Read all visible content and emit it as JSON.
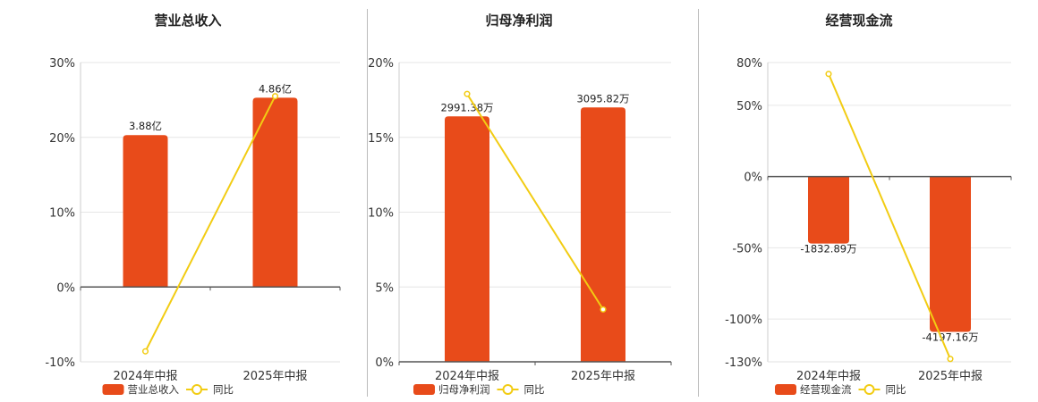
{
  "colors": {
    "bar": "#E84B1A",
    "line": "#F2CC13",
    "grid": "#e6e6e6",
    "axis": "#555555"
  },
  "chart_data": [
    {
      "type": "bar",
      "title": "营业总收入",
      "categories": [
        "2024年中报",
        "2025年中报"
      ],
      "values": [
        20.3,
        25.3
      ],
      "value_labels": [
        "3.88亿",
        "4.86亿"
      ],
      "line_values": [
        -8.6,
        25.5
      ],
      "yticks": [
        30,
        20,
        10,
        0,
        -10
      ],
      "ytick_labels": [
        "30%",
        "20%",
        "10%",
        "0%",
        "-10%"
      ],
      "ylim": [
        -10,
        30
      ],
      "legend": [
        "营业总收入",
        "同比"
      ],
      "legend_position": "bottom",
      "grid": true
    },
    {
      "type": "bar",
      "title": "归母净利润",
      "categories": [
        "2024年中报",
        "2025年中报"
      ],
      "values": [
        16.4,
        17.0
      ],
      "value_labels": [
        "2991.38万",
        "3095.82万"
      ],
      "line_values": [
        17.9,
        3.5
      ],
      "yticks": [
        20,
        15,
        10,
        5,
        0
      ],
      "ytick_labels": [
        "20%",
        "15%",
        "10%",
        "5%",
        "0%"
      ],
      "ylim": [
        0,
        20
      ],
      "legend": [
        "归母净利润",
        "同比"
      ],
      "legend_position": "bottom",
      "grid": true
    },
    {
      "type": "bar",
      "title": "经营现金流",
      "categories": [
        "2024年中报",
        "2025年中报"
      ],
      "values": [
        -47,
        -109
      ],
      "value_labels": [
        "-1832.89万",
        "-4197.16万"
      ],
      "line_values": [
        72,
        -128
      ],
      "yticks": [
        80,
        50,
        0,
        -50,
        -100,
        -130
      ],
      "ytick_labels": [
        "80%",
        "50%",
        "0%",
        "-50%",
        "-100%",
        "-130%"
      ],
      "ylim": [
        -130,
        80
      ],
      "legend": [
        "经营现金流",
        "同比"
      ],
      "legend_position": "bottom",
      "grid": true
    }
  ]
}
